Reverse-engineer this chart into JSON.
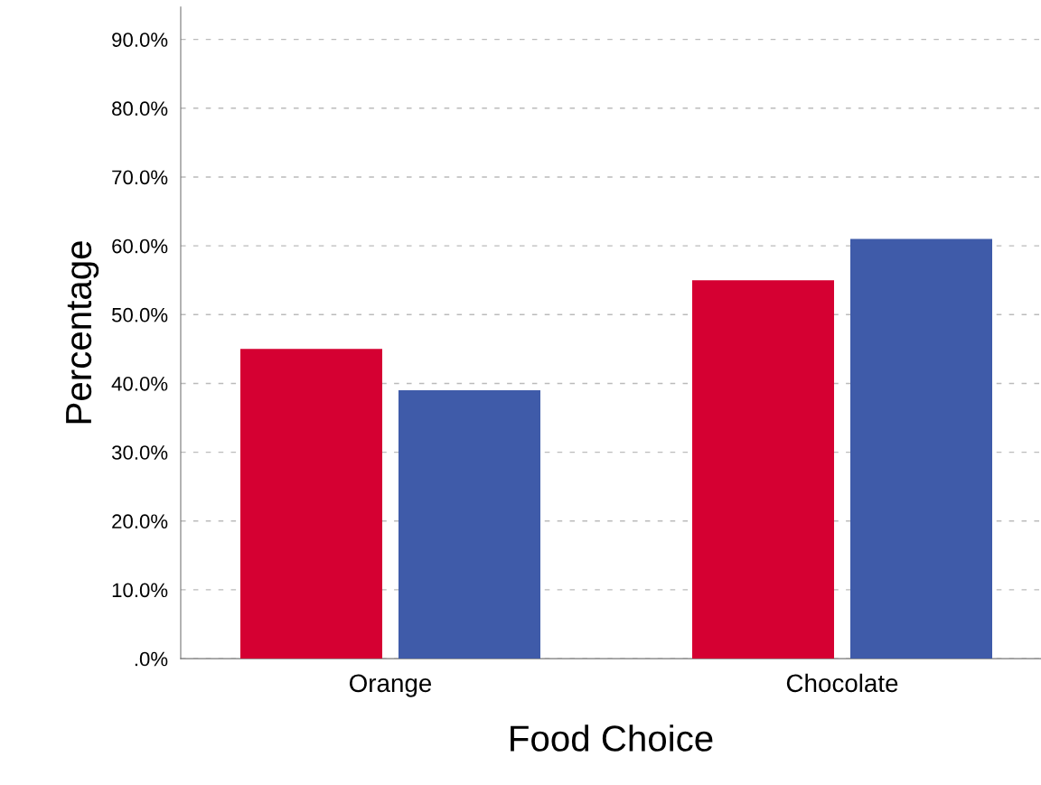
{
  "chart_data": {
    "type": "bar",
    "xlabel": "Food Choice",
    "ylabel": "Percentage",
    "categories": [
      "Orange",
      "Chocolate"
    ],
    "series": [
      {
        "color": "#d50032",
        "values": [
          45,
          55
        ]
      },
      {
        "color": "#3f5ba9",
        "values": [
          39,
          61
        ]
      }
    ],
    "ylim": [
      0,
      94.7
    ],
    "yticks": [
      {
        "value": 0,
        "label": ".0%"
      },
      {
        "value": 10,
        "label": "10.0%"
      },
      {
        "value": 20,
        "label": "20.0%"
      },
      {
        "value": 30,
        "label": "30.0%"
      },
      {
        "value": 40,
        "label": "40.0%"
      },
      {
        "value": 50,
        "label": "50.0%"
      },
      {
        "value": 60,
        "label": "60.0%"
      },
      {
        "value": 70,
        "label": "70.0%"
      },
      {
        "value": 80,
        "label": "80.0%"
      },
      {
        "value": 90,
        "label": "90.0%"
      }
    ],
    "grid": "y"
  }
}
